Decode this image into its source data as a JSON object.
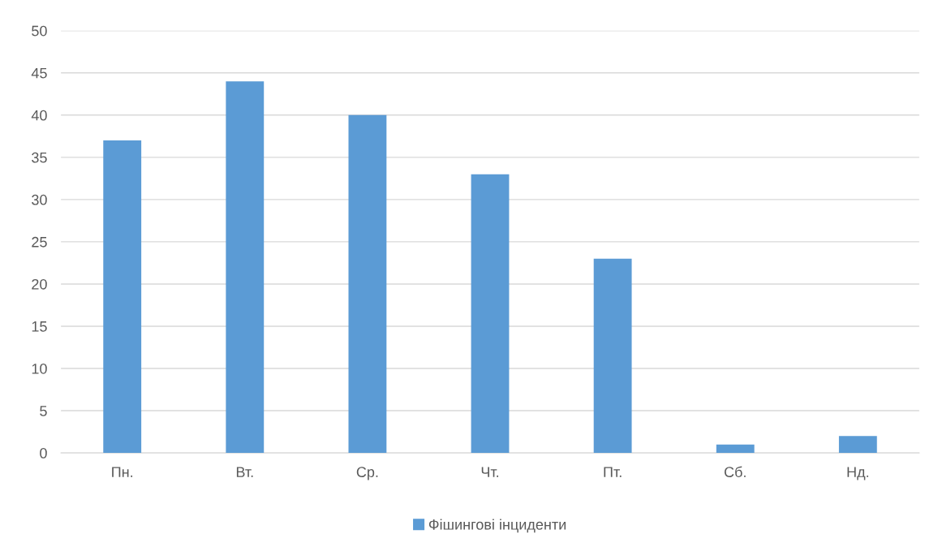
{
  "chart_data": {
    "type": "bar",
    "categories": [
      "Пн.",
      "Вт.",
      "Ср.",
      "Чт.",
      "Пт.",
      "Сб.",
      "Нд."
    ],
    "series": [
      {
        "name": "Фішингові інциденти",
        "color": "#5b9bd5",
        "values": [
          37,
          44,
          40,
          33,
          23,
          1,
          2
        ]
      }
    ],
    "ylim": [
      0,
      50
    ],
    "yticks": [
      0,
      5,
      10,
      15,
      20,
      25,
      30,
      35,
      40,
      45,
      50
    ],
    "grid": "y",
    "legend": "bottom"
  }
}
